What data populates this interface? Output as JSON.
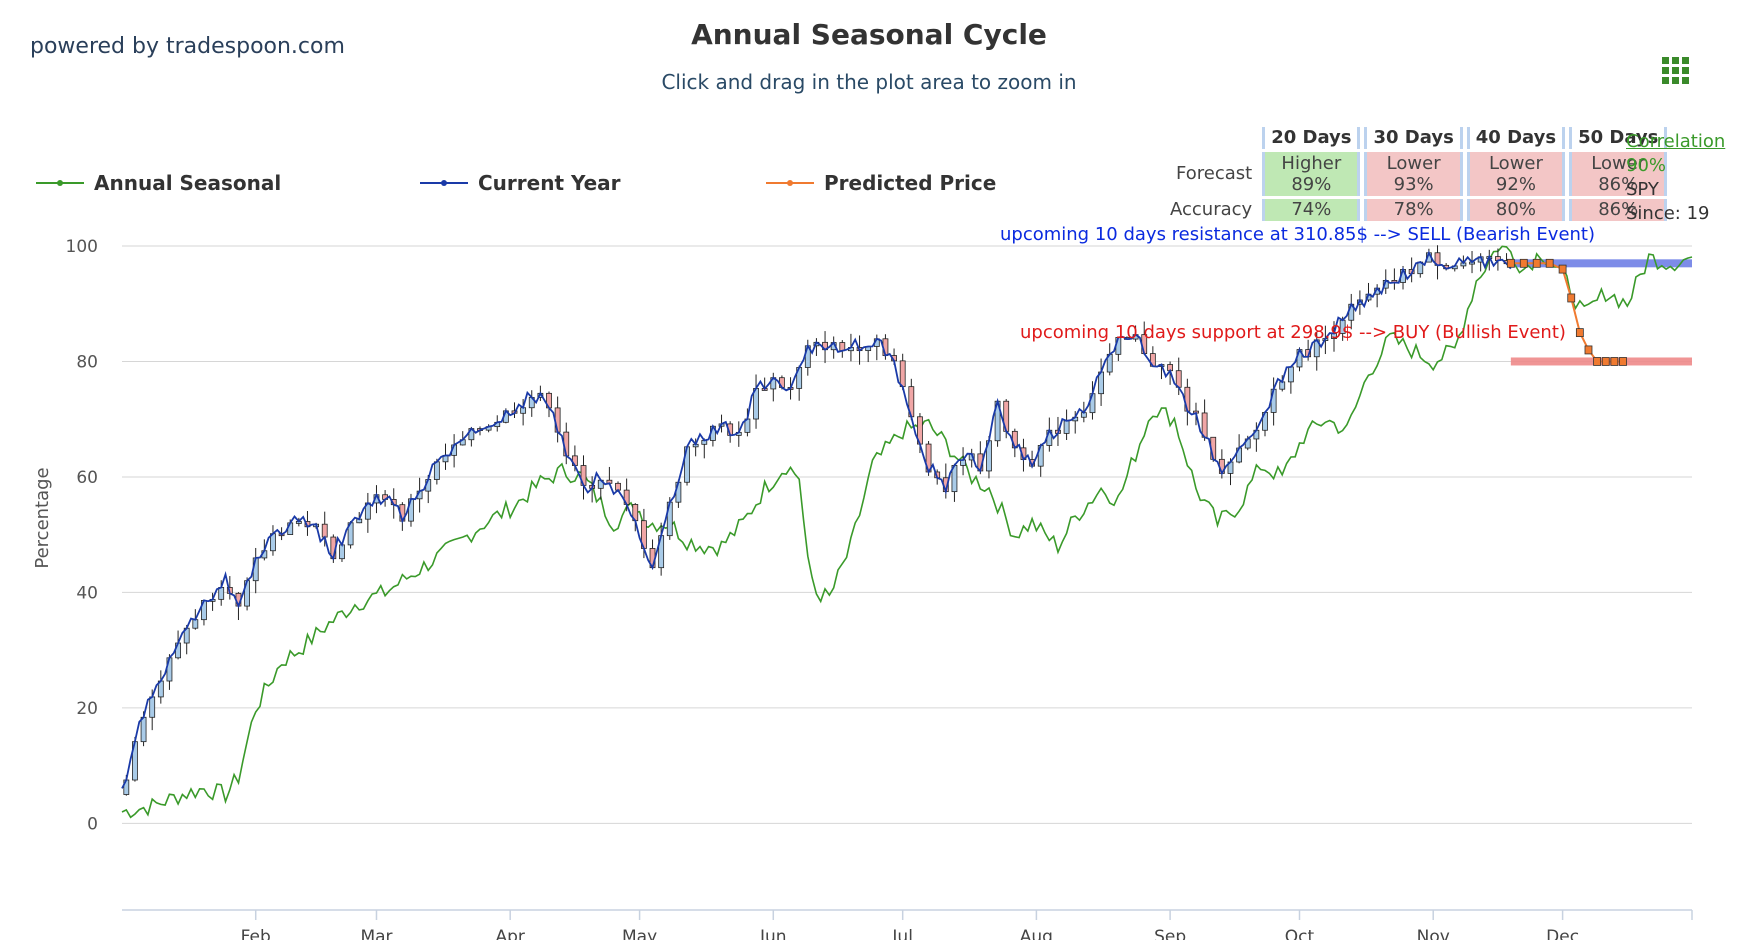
{
  "header": {
    "powered_by": "powered by tradespoon.com",
    "title": "Annual Seasonal Cycle",
    "subtitle": "Click and drag in the plot area to zoom in",
    "menu_icon": "hamburger-grid-icon"
  },
  "legend": [
    {
      "label": "Annual Seasonal",
      "color": "#3a9a2a"
    },
    {
      "label": "Current Year",
      "color": "#1a3aa8"
    },
    {
      "label": "Predicted Price",
      "color": "#f07a30"
    }
  ],
  "forecast_table": {
    "headers": [
      "20 Days",
      "30 Days",
      "40 Days",
      "50 Days"
    ],
    "row_labels": [
      "Forecast",
      "Accuracy"
    ],
    "forecast": [
      {
        "dir": "Higher",
        "pct": "89%"
      },
      {
        "dir": "Lower",
        "pct": "93%"
      },
      {
        "dir": "Lower",
        "pct": "92%"
      },
      {
        "dir": "Lower",
        "pct": "86%"
      }
    ],
    "accuracy": [
      "74%",
      "78%",
      "80%",
      "86%"
    ]
  },
  "correlation": {
    "link": "Correlation",
    "value": "90%",
    "symbol": "SPY",
    "since": "Since: 19"
  },
  "annotations": {
    "resistance": "upcoming 10 days resistance at 310.85$ --> SELL (Bearish Event)",
    "support": "upcoming 10 days support at 298.9$ --> BUY (Bullish Event)"
  },
  "colors": {
    "seasonal": "#3a9a2a",
    "current": "#1a3aa8",
    "predicted": "#f07a30",
    "resistance_band": "#6f7fe6",
    "support_band": "#ee8a8a",
    "resistance_text": "#0a2adf",
    "support_text": "#e01a1a",
    "candle_up": "#a9cbe8",
    "candle_down": "#f0a6a6",
    "grid": "#d6d6d6"
  },
  "chart_data": {
    "type": "line",
    "ylabel": "Percentage",
    "ylim": [
      -15,
      100
    ],
    "yticks": [
      0,
      20,
      40,
      60,
      80,
      100
    ],
    "xticks": [
      "Feb",
      "Mar",
      "Apr",
      "May",
      "Jun",
      "Jul",
      "Aug",
      "Sep",
      "Oct",
      "Nov",
      "Dec"
    ],
    "xlim_day": [
      1,
      365
    ],
    "series": [
      {
        "name": "Annual Seasonal",
        "x_day": [
          1,
          8,
          15,
          20,
          25,
          28,
          32,
          38,
          42,
          48,
          55,
          62,
          70,
          78,
          85,
          92,
          98,
          103,
          108,
          115,
          120,
          123,
          128,
          132,
          136,
          140,
          145,
          150,
          155,
          158,
          160,
          162,
          165,
          170,
          175,
          182,
          188,
          193,
          198,
          202,
          208,
          212,
          218,
          222,
          228,
          232,
          235,
          240,
          245,
          250,
          255,
          260,
          265,
          270,
          275,
          280,
          285,
          290,
          295,
          300,
          305,
          310,
          315,
          320,
          323,
          326,
          330,
          335,
          340,
          345,
          350,
          355,
          360,
          365
        ],
        "y": [
          2,
          3,
          5,
          6,
          5,
          8,
          20,
          28,
          30,
          34,
          38,
          40,
          44,
          48,
          52,
          55,
          59,
          61,
          60,
          52,
          55,
          52,
          52,
          49,
          48,
          48,
          52,
          58,
          62,
          60,
          45,
          40,
          39,
          48,
          62,
          68,
          69,
          65,
          60,
          58,
          50,
          52,
          48,
          53,
          58,
          56,
          62,
          72,
          70,
          58,
          52,
          55,
          62,
          60,
          67,
          70,
          68,
          78,
          84,
          82,
          80,
          82,
          94,
          100,
          99,
          96,
          99,
          95,
          88,
          92,
          90,
          98,
          97,
          98
        ]
      },
      {
        "name": "Current Year",
        "x_day": [
          1,
          3,
          5,
          8,
          12,
          15,
          20,
          25,
          28,
          32,
          36,
          40,
          45,
          50,
          55,
          58,
          62,
          66,
          70,
          75,
          80,
          85,
          88,
          92,
          96,
          100,
          104,
          108,
          112,
          116,
          120,
          124,
          128,
          132,
          136,
          140,
          144,
          148,
          152,
          156,
          160,
          164,
          168,
          172,
          176,
          180,
          184,
          188,
          192,
          196,
          200,
          204,
          208,
          212,
          216,
          220,
          224,
          228,
          232,
          236,
          240,
          244,
          248,
          252,
          256,
          260,
          264,
          268,
          272,
          276,
          280,
          284,
          288,
          292,
          296,
          300,
          304,
          308,
          312,
          316,
          320,
          323
        ],
        "y": [
          5,
          12,
          18,
          22,
          28,
          33,
          38,
          43,
          37,
          45,
          50,
          52,
          52,
          47,
          53,
          55,
          57,
          53,
          58,
          63,
          66,
          69,
          70,
          72,
          74,
          73,
          64,
          58,
          60,
          57,
          52,
          45,
          55,
          65,
          67,
          69,
          67,
          75,
          77,
          75,
          82,
          83,
          82,
          83,
          84,
          80,
          70,
          62,
          58,
          64,
          62,
          72,
          65,
          63,
          67,
          70,
          72,
          78,
          83,
          84,
          80,
          78,
          72,
          68,
          60,
          64,
          68,
          75,
          80,
          82,
          84,
          88,
          90,
          92,
          94,
          96,
          98,
          97,
          97,
          97,
          97,
          97
        ]
      },
      {
        "name": "Predicted Price",
        "x_day": [
          323,
          326,
          329,
          332,
          335,
          337,
          339,
          341,
          343,
          345,
          347,
          349
        ],
        "y": [
          97,
          97,
          97,
          97,
          96,
          91,
          85,
          82,
          80,
          80,
          80,
          80
        ]
      }
    ],
    "bands": [
      {
        "name": "resistance",
        "y": 97,
        "x_day_start": 323,
        "x_day_end": 365
      },
      {
        "name": "support",
        "y": 80,
        "x_day_start": 323,
        "x_day_end": 365
      }
    ]
  }
}
